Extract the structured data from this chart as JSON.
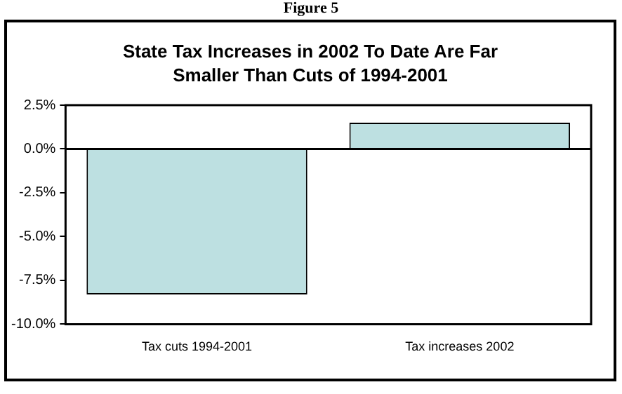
{
  "chart_data": {
    "type": "bar",
    "title": "State Tax Increases in 2002 To Date Are Far Smaller Than Cuts of 1994-2001",
    "annotations": [
      "Figure 5"
    ],
    "categories": [
      "Tax cuts 1994-2001",
      "Tax increases 2002"
    ],
    "values": [
      -8.3,
      1.5
    ],
    "color": "#bde0e1",
    "ylim": [
      -10,
      2.5
    ],
    "yticks": [
      {
        "value": -10,
        "label": "-10.0%"
      },
      {
        "value": -7.5,
        "label": "-7.5%"
      },
      {
        "value": -5,
        "label": "-5.0%"
      },
      {
        "value": -2.5,
        "label": "-2.5%"
      },
      {
        "value": 0,
        "label": "0.0%"
      },
      {
        "value": 2.5,
        "label": "2.5%"
      }
    ],
    "legend": false
  }
}
